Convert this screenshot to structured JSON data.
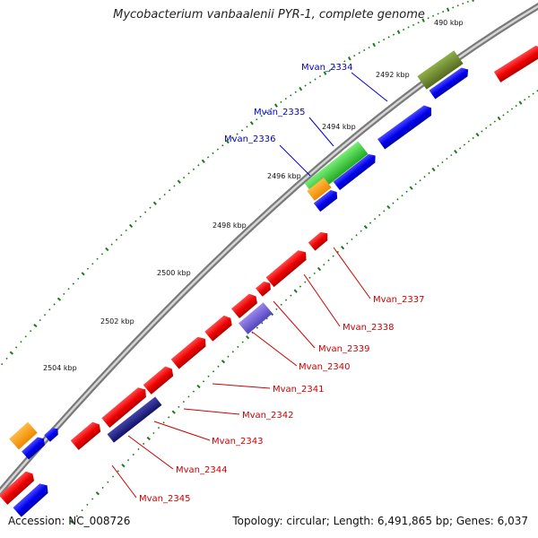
{
  "title": "Mycobacterium vanbaalenii PYR-1, complete genome",
  "footer": {
    "accession": "Accession: NC_008726",
    "summary": "Topology: circular; Length: 6,491,865 bp; Genes: 6,037"
  },
  "colors": {
    "forward_gene": "#ff0000",
    "reverse_gene": "#0000ff",
    "forward_label": "#cc0000",
    "reverse_label": "#0000cc",
    "ruler": "#1a7a1a",
    "backbone": "#888888",
    "feature_olive": "#6b8e23",
    "feature_green": "#33cc33",
    "feature_orange": "#ff9900",
    "feature_purple": "#7766cc",
    "feature_navy": "#222288"
  },
  "kbp_ticks": [
    "490 kbp",
    "2492 kbp",
    "2494 kbp",
    "2496 kbp",
    "2498 kbp",
    "2500 kbp",
    "2502 kbp",
    "2504 kbp"
  ],
  "reverse_genes": [
    "Mvan_2334",
    "Mvan_2335",
    "Mvan_2336"
  ],
  "forward_genes": [
    "Mvan_2337",
    "Mvan_2338",
    "Mvan_2339",
    "Mvan_2340",
    "Mvan_2341",
    "Mvan_2342",
    "Mvan_2343",
    "Mvan_2344",
    "Mvan_2345"
  ]
}
